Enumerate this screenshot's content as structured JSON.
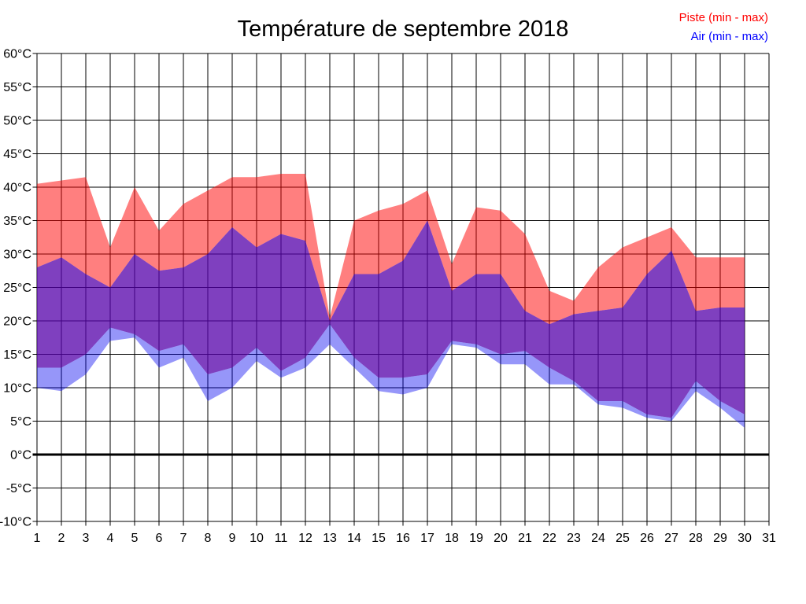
{
  "chart_data": {
    "type": "area",
    "title": "Température de septembre 2018",
    "legend_position": "top-right",
    "grid": true,
    "xlim": [
      1,
      31
    ],
    "ylim": [
      -10,
      60
    ],
    "x_ticks": [
      1,
      2,
      3,
      4,
      5,
      6,
      7,
      8,
      9,
      10,
      11,
      12,
      13,
      14,
      15,
      16,
      17,
      18,
      19,
      20,
      21,
      22,
      23,
      24,
      25,
      26,
      27,
      28,
      29,
      30,
      31
    ],
    "y_ticks": [
      {
        "value": 60,
        "label": "60°C"
      },
      {
        "value": 55,
        "label": "55°C"
      },
      {
        "value": 50,
        "label": "50°C"
      },
      {
        "value": 45,
        "label": "45°C"
      },
      {
        "value": 40,
        "label": "40°C"
      },
      {
        "value": 35,
        "label": "35°C"
      },
      {
        "value": 30,
        "label": "30°C"
      },
      {
        "value": 25,
        "label": "25°C"
      },
      {
        "value": 20,
        "label": "20°C"
      },
      {
        "value": 15,
        "label": "15°C"
      },
      {
        "value": 10,
        "label": "10°C"
      },
      {
        "value": 5,
        "label": "5°C"
      },
      {
        "value": 0,
        "label": "0°C"
      },
      {
        "value": -5,
        "label": "-5°C"
      },
      {
        "value": -10,
        "label": "-10°C"
      }
    ],
    "days": [
      1,
      2,
      3,
      4,
      5,
      6,
      7,
      8,
      9,
      10,
      11,
      12,
      13,
      14,
      15,
      16,
      17,
      18,
      19,
      20,
      21,
      22,
      23,
      24,
      25,
      26,
      27,
      28,
      29,
      30
    ],
    "series": [
      {
        "name": "Piste (min - max)",
        "legend_color": "#FF0000",
        "band_fill": "rgba(255,0,0,0.5)",
        "max": [
          40.5,
          41,
          41.5,
          31,
          40,
          33.5,
          37.5,
          39.5,
          41.5,
          41.5,
          42,
          42,
          20.5,
          35,
          36.5,
          37.5,
          39.5,
          28.5,
          37,
          36.5,
          33,
          24.5,
          23,
          28,
          31,
          32.5,
          34,
          29.5,
          29.5,
          29.5
        ],
        "min": [
          13,
          13,
          15,
          19,
          18,
          15.5,
          16.5,
          12,
          13,
          16,
          12.5,
          14.5,
          19.5,
          14.5,
          11.5,
          11.5,
          12,
          17,
          16.5,
          15,
          15.5,
          13,
          11,
          8,
          8,
          6,
          5.5,
          11,
          8,
          6
        ]
      },
      {
        "name": "Air (min - max)",
        "legend_color": "#0000FF",
        "band_fill": "rgba(0,0,240,0.41)",
        "max": [
          28,
          29.5,
          27,
          25,
          30,
          27.5,
          28,
          30,
          34,
          31,
          33,
          32,
          20,
          27,
          27,
          29,
          35,
          24.5,
          27,
          27,
          21.5,
          19.5,
          21,
          21.5,
          22,
          27,
          30.5,
          21.5,
          22,
          22
        ],
        "min": [
          10,
          9.5,
          12,
          17,
          17.5,
          13,
          14.5,
          8,
          10,
          14,
          11.5,
          13,
          16.5,
          13,
          9.5,
          9,
          10,
          16.5,
          16,
          13.5,
          13.5,
          10.5,
          10.5,
          7.5,
          7,
          5.5,
          5,
          9.5,
          7,
          4
        ]
      }
    ],
    "overlap_fill": "rgba(84,0,170,0.75)",
    "zero_line": true
  }
}
